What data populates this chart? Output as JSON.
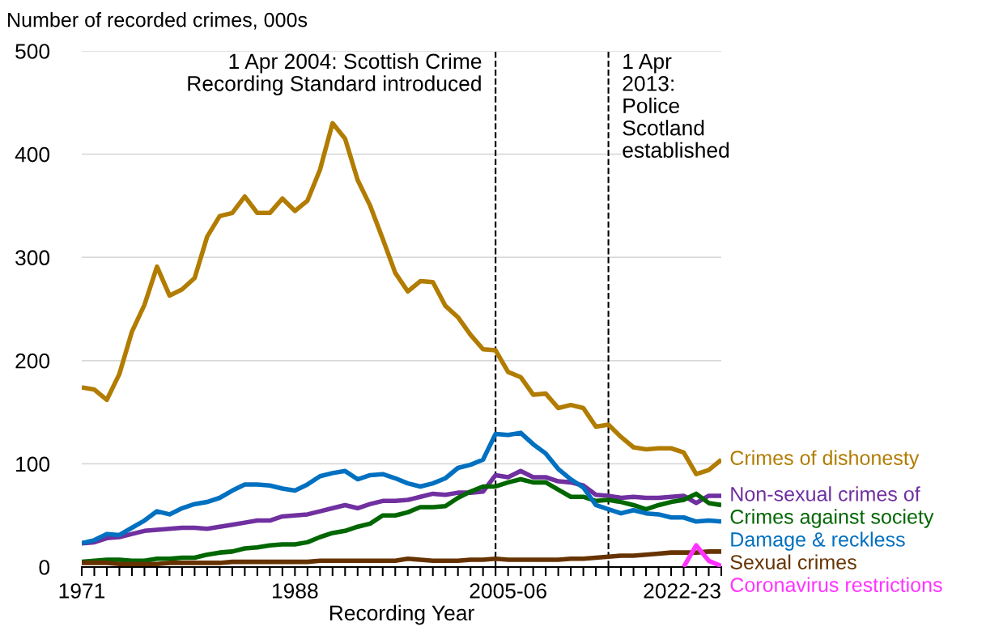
{
  "chart_data": {
    "type": "line",
    "ylabel": "Number of recorded crimes, 000s",
    "xlabel": "Recording Year",
    "x": [
      1971,
      1972,
      1973,
      1974,
      1975,
      1976,
      1977,
      1978,
      1979,
      1980,
      1981,
      1982,
      1983,
      1984,
      1985,
      1986,
      1987,
      1988,
      1989,
      1990,
      1991,
      1992,
      1993,
      1994,
      1995,
      1996,
      1997,
      1998,
      1999,
      2000,
      2001,
      2002,
      2003,
      2004,
      2005,
      2006,
      2007,
      2008,
      2009,
      2010,
      2011,
      2012,
      2013,
      2014,
      2015,
      2016,
      2017,
      2018,
      2019,
      2020,
      2021,
      2022
    ],
    "xlim": [
      1971,
      2022
    ],
    "xticks": [
      1971,
      {
        "value": 1972,
        "label": null
      },
      {
        "value": 1973,
        "label": null
      },
      {
        "value": 1974,
        "label": null
      },
      {
        "value": 1975,
        "label": null
      },
      {
        "value": 1976,
        "label": null
      },
      {
        "value": 1977,
        "label": null
      },
      {
        "value": 1978,
        "label": null
      },
      {
        "value": 1979,
        "label": null
      },
      {
        "value": 1980,
        "label": null
      },
      {
        "value": 1981,
        "label": null
      },
      {
        "value": 1982,
        "label": null
      },
      {
        "value": 1983,
        "label": null
      },
      {
        "value": 1984,
        "label": null
      },
      {
        "value": 1985,
        "label": null
      },
      {
        "value": 1986,
        "label": null
      },
      {
        "value": 1987,
        "label": null
      },
      1988,
      {
        "value": 1989,
        "label": null
      },
      {
        "value": 1990,
        "label": null
      },
      {
        "value": 1991,
        "label": null
      },
      {
        "value": 1992,
        "label": null
      },
      {
        "value": 1993,
        "label": null
      },
      {
        "value": 1994,
        "label": null
      },
      {
        "value": 1995,
        "label": null
      },
      {
        "value": 1996,
        "label": null
      },
      {
        "value": 1997,
        "label": null
      },
      {
        "value": 1998,
        "label": null
      },
      {
        "value": 1999,
        "label": null
      },
      {
        "value": 2000,
        "label": null
      },
      {
        "value": 2001,
        "label": null
      },
      {
        "value": 2002,
        "label": null
      },
      {
        "value": 2003,
        "label": null
      },
      {
        "value": 2004,
        "label": null
      },
      {
        "value": 2005,
        "label": "2005-06"
      },
      {
        "value": 2006,
        "label": null
      },
      {
        "value": 2007,
        "label": null
      },
      {
        "value": 2008,
        "label": null
      },
      {
        "value": 2009,
        "label": null
      },
      {
        "value": 2010,
        "label": null
      },
      {
        "value": 2011,
        "label": null
      },
      {
        "value": 2012,
        "label": null
      },
      {
        "value": 2013,
        "label": null
      },
      {
        "value": 2014,
        "label": null
      },
      {
        "value": 2015,
        "label": null
      },
      {
        "value": 2016,
        "label": null
      },
      {
        "value": 2017,
        "label": null
      },
      {
        "value": 2018,
        "label": null
      },
      {
        "value": 2019,
        "label": null
      },
      {
        "value": 2020,
        "label": null
      },
      {
        "value": 2021,
        "label": null
      },
      {
        "value": 2022,
        "label": "2022-23"
      }
    ],
    "ylim": [
      0,
      500
    ],
    "yticks": [
      0,
      100,
      200,
      300,
      400,
      500
    ],
    "grid": "y",
    "legend": false,
    "line_style": "solid",
    "series": [
      {
        "name": "Crimes of dishonesty",
        "color": "#b17c00",
        "values": [
          174,
          172,
          162,
          187,
          228,
          254,
          291,
          263,
          269,
          280,
          320,
          340,
          343,
          359,
          343,
          343,
          357,
          345,
          355,
          385,
          430,
          415,
          375,
          350,
          318,
          285,
          267,
          277,
          276,
          253,
          242,
          225,
          211,
          210,
          189,
          184,
          167,
          168,
          154,
          157,
          154,
          136,
          138,
          126,
          116,
          114,
          115,
          115,
          111,
          90,
          94,
          104
        ]
      },
      {
        "name": "Non-sexual crimes of",
        "color": "#7030a0",
        "values": [
          23,
          24,
          28,
          29,
          32,
          35,
          36,
          37,
          38,
          38,
          37,
          39,
          41,
          43,
          45,
          45,
          49,
          50,
          51,
          54,
          57,
          60,
          57,
          61,
          64,
          64,
          65,
          68,
          71,
          70,
          72,
          72,
          73,
          89,
          87,
          93,
          87,
          87,
          83,
          82,
          79,
          70,
          69,
          67,
          68,
          67,
          67,
          68,
          69,
          62,
          69,
          69
        ]
      },
      {
        "name": "Crimes against society",
        "color": "#006600",
        "values": [
          5,
          6,
          7,
          7,
          6,
          6,
          8,
          8,
          9,
          9,
          12,
          14,
          15,
          18,
          19,
          21,
          22,
          22,
          24,
          29,
          33,
          35,
          39,
          42,
          50,
          50,
          53,
          58,
          58,
          59,
          67,
          73,
          78,
          78,
          82,
          85,
          82,
          82,
          75,
          68,
          68,
          64,
          65,
          63,
          60,
          56,
          60,
          63,
          65,
          71,
          62,
          60
        ]
      },
      {
        "name": "Damage & reckless",
        "color": "#0070c0",
        "values": [
          23,
          26,
          32,
          31,
          38,
          45,
          54,
          51,
          57,
          61,
          63,
          67,
          74,
          80,
          80,
          79,
          76,
          74,
          80,
          88,
          91,
          93,
          85,
          89,
          90,
          86,
          81,
          78,
          81,
          86,
          96,
          99,
          104,
          129,
          128,
          130,
          119,
          110,
          95,
          85,
          77,
          60,
          56,
          52,
          55,
          52,
          51,
          48,
          48,
          44,
          45,
          44
        ]
      },
      {
        "name": "Sexual crimes",
        "color": "#663300",
        "values": [
          4,
          4,
          4,
          3,
          3,
          3,
          3,
          4,
          4,
          4,
          4,
          4,
          5,
          5,
          5,
          5,
          5,
          5,
          5,
          6,
          6,
          6,
          6,
          6,
          6,
          6,
          8,
          7,
          6,
          6,
          6,
          7,
          7,
          8,
          7,
          7,
          7,
          7,
          7,
          8,
          8,
          9,
          10,
          11,
          11,
          12,
          13,
          14,
          14,
          14,
          15,
          15
        ]
      },
      {
        "name": "Coronavirus restrictions",
        "color": "#ff33ff",
        "x": [
          2019,
          2020,
          2021,
          2022
        ],
        "values": [
          0,
          21,
          6,
          1
        ]
      }
    ],
    "ref_lines": [
      {
        "axis": "x",
        "value": 2004,
        "label": "1 Apr 2004: Scottish Crime\nRecording Standard introduced",
        "color": "#000000",
        "line_style": "dashed"
      },
      {
        "axis": "x",
        "value": 2013,
        "label": "1 Apr\n2013:\nPolice\nScotland\nestablished",
        "color": "#000000",
        "line_style": "dashed"
      }
    ]
  }
}
